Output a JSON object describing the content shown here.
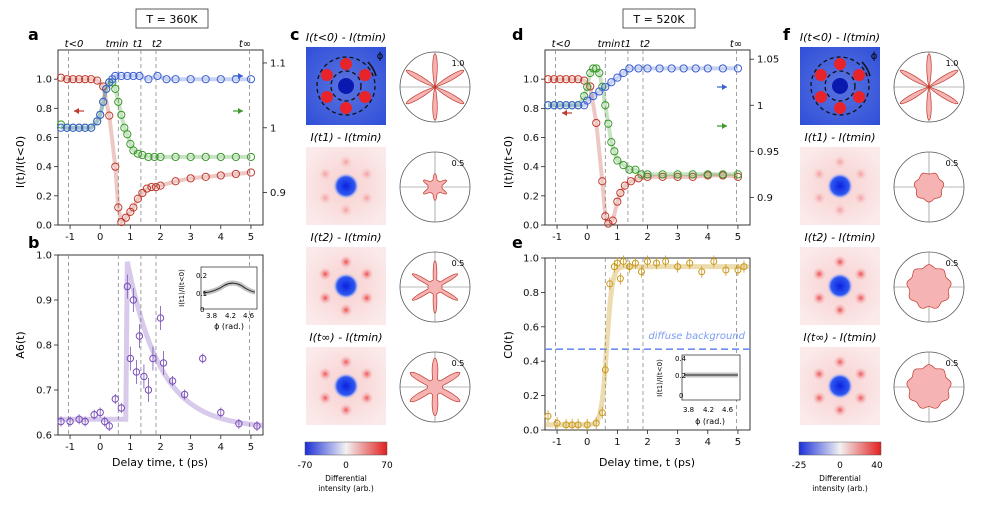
{
  "figure": {
    "labels": {
      "a": "a",
      "b": "b",
      "c": "c",
      "d": "d",
      "e": "e",
      "f": "f"
    },
    "temp_left": "T = 360K",
    "temp_right": "T = 520K",
    "time_labels": {
      "t_lt0": "t<0",
      "tmin": "tmin",
      "t1": "t1",
      "t2": "t2",
      "tinf": "t∞"
    },
    "xlabel": "Delay time, t (ps)",
    "ylabel_a": "I(t)/I(t<0)",
    "ylabel_b": "A6(t)",
    "ylabel_d": "I(t)/I(t<0)",
    "ylabel_e": "C0(t)",
    "diffuse_label": "diffuse background",
    "inset_ylabel": "I(t1)/I(t<0)",
    "inset_xlabel": "ϕ (rad.)",
    "colorbar_label_line1": "Differential",
    "colorbar_label_line2": "intensity (arb.)",
    "colorbar_left_ticks": [
      "-70",
      "0",
      "70"
    ],
    "colorbar_right_ticks": [
      "-25",
      "0",
      "40"
    ],
    "phi_label": "ϕ",
    "image_titles": [
      "I(t<0) - I(tmin)",
      "I(t1) - I(tmin)",
      "I(t2) - I(tmin)",
      "I(t∞) - I(tmin)"
    ],
    "polar_left_scale": [
      "1.0",
      "0.5",
      "0.5",
      "0.5"
    ],
    "polar_right_scale": [
      "1.0",
      "0.5",
      "0.5",
      "0.5"
    ]
  },
  "colors": {
    "red": "#c0392b",
    "green": "#3a9a2a",
    "blue": "#3a5fd0",
    "purple": "#7b4fb8",
    "gold": "#c99a1e"
  },
  "chart_data": [
    {
      "panel": "a",
      "type": "scatter",
      "xlim": [
        -1.4,
        5.4
      ],
      "ylim_left": [
        0,
        1.2
      ],
      "ylim_right": [
        0.85,
        1.12
      ],
      "xticks": [
        -1,
        0,
        1,
        2,
        3,
        4,
        5
      ],
      "yticks_left": [
        0.0,
        0.2,
        0.4,
        0.6,
        0.8,
        1.0
      ],
      "yticks_right": [
        0.9,
        1.0,
        1.1
      ],
      "vlines": [
        -1.05,
        0.6,
        1.35,
        1.85,
        4.95
      ],
      "series": [
        {
          "color": "red",
          "x": [
            -1.3,
            -1.1,
            -0.9,
            -0.7,
            -0.5,
            -0.3,
            -0.1,
            0.1,
            0.3,
            0.5,
            0.6,
            0.7,
            0.85,
            1.0,
            1.1,
            1.25,
            1.4,
            1.55,
            1.7,
            1.85,
            2.0,
            2.5,
            3.0,
            3.5,
            4.0,
            4.5,
            5.0
          ],
          "y": [
            1.01,
            1.0,
            1.0,
            1.0,
            1.0,
            1.0,
            0.99,
            0.95,
            0.75,
            0.4,
            0.12,
            0.02,
            0.05,
            0.09,
            0.12,
            0.18,
            0.22,
            0.25,
            0.26,
            0.26,
            0.27,
            0.3,
            0.32,
            0.33,
            0.34,
            0.35,
            0.36
          ]
        },
        {
          "color": "green",
          "x": [
            -1.3,
            -1.1,
            -0.9,
            -0.7,
            -0.5,
            -0.3,
            -0.1,
            0.0,
            0.1,
            0.2,
            0.3,
            0.4,
            0.5,
            0.6,
            0.7,
            0.8,
            0.9,
            1.0,
            1.1,
            1.25,
            1.4,
            1.6,
            1.8,
            2.0,
            2.5,
            3.0,
            3.5,
            4.0,
            4.5,
            5.0
          ],
          "y": [
            1.005,
            1.0,
            1.0,
            1.0,
            1.0,
            1.0,
            1.01,
            1.02,
            1.04,
            1.06,
            1.07,
            1.07,
            1.06,
            1.04,
            1.02,
            1.0,
            0.99,
            0.975,
            0.965,
            0.96,
            0.958,
            0.955,
            0.955,
            0.955,
            0.955,
            0.955,
            0.955,
            0.955,
            0.955,
            0.955
          ]
        },
        {
          "color": "blue",
          "x": [
            -1.3,
            -1.1,
            -0.9,
            -0.7,
            -0.5,
            -0.3,
            -0.1,
            0.0,
            0.1,
            0.2,
            0.3,
            0.4,
            0.5,
            0.7,
            0.9,
            1.1,
            1.3,
            1.6,
            1.9,
            2.2,
            2.5,
            3.0,
            3.5,
            4.0,
            4.5,
            5.0
          ],
          "y": [
            1.0,
            1.0,
            1.0,
            1.0,
            1.0,
            1.0,
            1.01,
            1.02,
            1.04,
            1.06,
            1.07,
            1.075,
            1.08,
            1.08,
            1.08,
            1.08,
            1.08,
            1.075,
            1.08,
            1.075,
            1.075,
            1.075,
            1.075,
            1.075,
            1.075,
            1.075
          ]
        }
      ]
    },
    {
      "panel": "b",
      "type": "scatter",
      "xlim": [
        -1.4,
        5.4
      ],
      "ylim": [
        0.6,
        1.0
      ],
      "xticks": [
        -1,
        0,
        1,
        2,
        3,
        4,
        5
      ],
      "yticks": [
        0.6,
        0.7,
        0.8,
        0.9,
        1.0
      ],
      "x": [
        -1.3,
        -1.0,
        -0.7,
        -0.5,
        -0.2,
        0.0,
        0.15,
        0.3,
        0.5,
        0.7,
        0.9,
        1.0,
        1.1,
        1.2,
        1.3,
        1.45,
        1.6,
        1.75,
        2.0,
        2.1,
        2.4,
        2.8,
        3.4,
        4.0,
        4.6,
        5.2
      ],
      "y": [
        0.63,
        0.63,
        0.635,
        0.63,
        0.645,
        0.65,
        0.63,
        0.62,
        0.68,
        0.66,
        0.93,
        0.77,
        0.9,
        0.74,
        0.82,
        0.73,
        0.7,
        0.77,
        0.86,
        0.76,
        0.72,
        0.69,
        0.77,
        0.65,
        0.625,
        0.62
      ]
    },
    {
      "panel": "d",
      "type": "scatter",
      "xlim": [
        -1.4,
        5.4
      ],
      "ylim_left": [
        0,
        1.2
      ],
      "ylim_right": [
        0.87,
        1.06
      ],
      "xticks": [
        -1,
        0,
        1,
        2,
        3,
        4,
        5
      ],
      "yticks_left": [
        0.0,
        0.2,
        0.4,
        0.6,
        0.8,
        1.0
      ],
      "yticks_right": [
        0.9,
        0.95,
        1.0,
        1.05
      ],
      "vlines": [
        -1.05,
        0.6,
        1.35,
        1.85,
        4.95
      ],
      "series": [
        {
          "color": "red",
          "x": [
            -1.3,
            -1.1,
            -0.9,
            -0.7,
            -0.5,
            -0.3,
            -0.1,
            0.1,
            0.3,
            0.5,
            0.6,
            0.7,
            0.85,
            1.0,
            1.1,
            1.25,
            1.45,
            1.7,
            2.0,
            2.5,
            3.0,
            3.5,
            4.0,
            4.5,
            5.0
          ],
          "y": [
            1.0,
            1.0,
            1.0,
            1.0,
            1.0,
            1.0,
            0.99,
            0.95,
            0.7,
            0.3,
            0.06,
            0.01,
            0.03,
            0.16,
            0.22,
            0.27,
            0.3,
            0.32,
            0.33,
            0.33,
            0.33,
            0.33,
            0.34,
            0.34,
            0.33
          ]
        },
        {
          "color": "green",
          "x": [
            -1.3,
            -1.1,
            -0.9,
            -0.7,
            -0.5,
            -0.3,
            -0.1,
            0.0,
            0.1,
            0.2,
            0.3,
            0.4,
            0.5,
            0.6,
            0.7,
            0.8,
            0.9,
            1.0,
            1.2,
            1.4,
            1.6,
            1.8,
            2.0,
            2.5,
            3.0,
            3.5,
            4.0,
            4.5,
            5.0
          ],
          "y": [
            1.0,
            1.0,
            1.0,
            1.0,
            1.0,
            1.0,
            1.01,
            1.02,
            1.035,
            1.04,
            1.04,
            1.035,
            1.02,
            1.0,
            0.98,
            0.96,
            0.95,
            0.94,
            0.935,
            0.93,
            0.93,
            0.925,
            0.925,
            0.925,
            0.925,
            0.925,
            0.925,
            0.925,
            0.925
          ]
        },
        {
          "color": "blue",
          "x": [
            -1.3,
            -1.1,
            -0.9,
            -0.7,
            -0.5,
            -0.3,
            -0.1,
            0.0,
            0.2,
            0.4,
            0.6,
            0.8,
            1.0,
            1.2,
            1.4,
            1.7,
            2.0,
            2.4,
            2.8,
            3.2,
            3.6,
            4.0,
            4.5,
            5.0
          ],
          "y": [
            1.0,
            1.0,
            1.0,
            1.0,
            1.0,
            1.0,
            1.0,
            1.005,
            1.01,
            1.015,
            1.02,
            1.025,
            1.03,
            1.035,
            1.04,
            1.04,
            1.04,
            1.04,
            1.04,
            1.04,
            1.04,
            1.04,
            1.04,
            1.04
          ]
        }
      ]
    },
    {
      "panel": "e",
      "type": "scatter",
      "xlim": [
        -1.4,
        5.4
      ],
      "ylim": [
        0,
        1.0
      ],
      "xticks": [
        -1,
        0,
        1,
        2,
        3,
        4,
        5
      ],
      "yticks": [
        0.0,
        0.2,
        0.4,
        0.6,
        0.8,
        1.0
      ],
      "diffuse_background": 0.47,
      "x": [
        -1.3,
        -1.0,
        -0.7,
        -0.5,
        -0.3,
        0.0,
        0.3,
        0.5,
        0.6,
        0.75,
        0.9,
        1.0,
        1.1,
        1.2,
        1.4,
        1.6,
        1.8,
        2.0,
        2.3,
        2.6,
        3.0,
        3.4,
        3.8,
        4.2,
        4.6,
        5.0,
        5.2
      ],
      "y": [
        0.08,
        0.04,
        0.03,
        0.03,
        0.03,
        0.03,
        0.04,
        0.1,
        0.35,
        0.85,
        0.95,
        0.97,
        0.88,
        0.98,
        0.95,
        0.97,
        0.92,
        0.98,
        0.97,
        0.98,
        0.95,
        0.97,
        0.92,
        0.98,
        0.93,
        0.93,
        0.95
      ]
    }
  ]
}
